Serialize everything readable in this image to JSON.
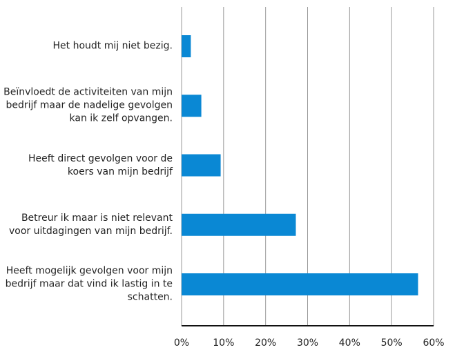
{
  "chart_data": {
    "type": "bar",
    "orientation": "horizontal",
    "categories": [
      "Het houdt mij niet bezig.",
      "Beïnvloedt de activiteiten van mijn bedrijf maar de nadelige gevolgen kan ik zelf opvangen.",
      "Heeft direct gevolgen voor de koers van mijn bedrijf",
      "Betreur ik maar is niet relevant voor uitdagingen van mijn bedrijf.",
      "Heeft mogelijk gevolgen voor mijn bedrijf maar dat vind ik lastig in te schatten."
    ],
    "values": [
      2.2,
      4.7,
      9.3,
      27.2,
      56.3
    ],
    "color": "#0a88d4",
    "xlim": [
      0,
      60
    ],
    "xticks": [
      {
        "value": 0,
        "label": "0%"
      },
      {
        "value": 10,
        "label": "10%"
      },
      {
        "value": 20,
        "label": "20%"
      },
      {
        "value": 30,
        "label": "30%"
      },
      {
        "value": 40,
        "label": "40%"
      },
      {
        "value": 50,
        "label": "50%"
      },
      {
        "value": 60,
        "label": "60%"
      }
    ],
    "grid": true
  }
}
